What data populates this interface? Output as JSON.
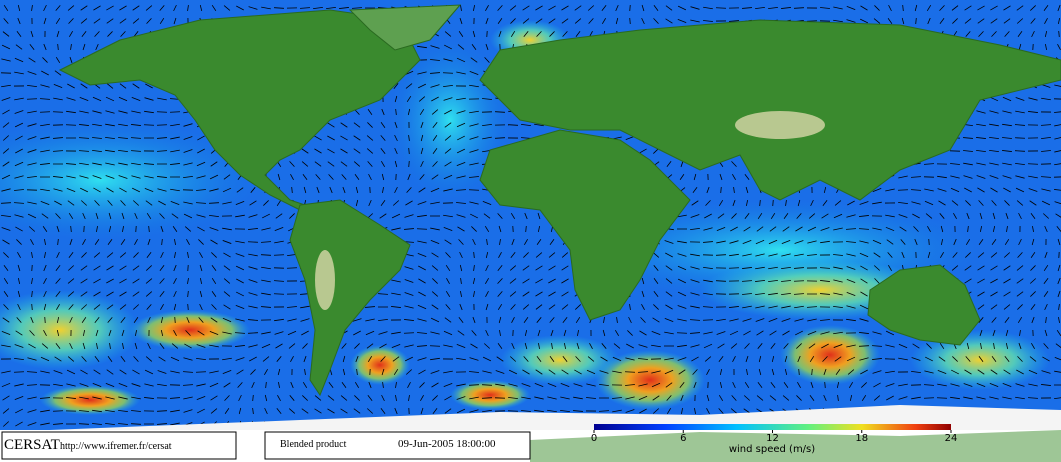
{
  "footer": {
    "logo": "CERSAT",
    "url": "http://www.ifremer.fr/cersat",
    "product": "Blended product",
    "datetime": "09-Jun-2005 18:00:00"
  },
  "colorbar": {
    "ticks": [
      0,
      6,
      12,
      18,
      24
    ],
    "label": "wind speed (m/s)"
  }
}
